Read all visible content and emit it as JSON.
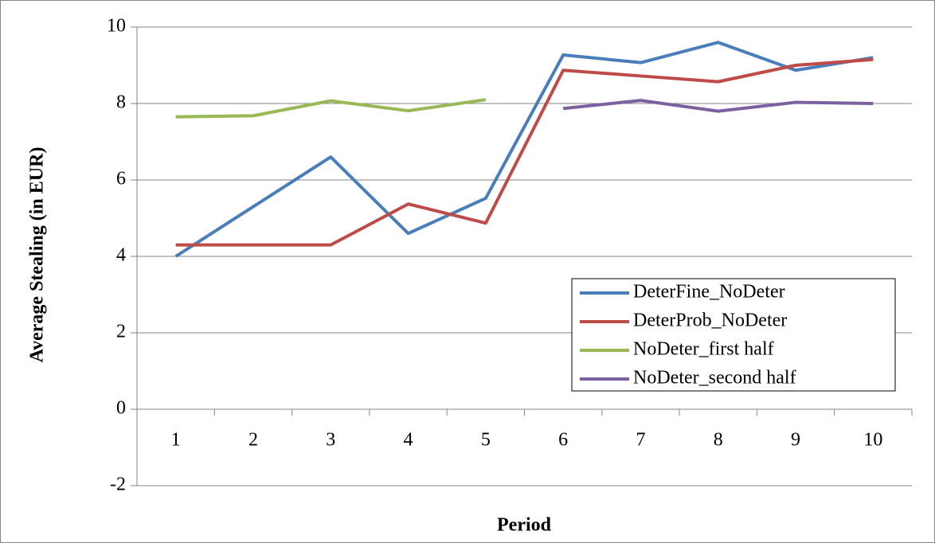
{
  "chart_data": {
    "type": "line",
    "x_label": "Period",
    "y_label": "Average Stealing (in EUR)",
    "categories": [
      "1",
      "2",
      "3",
      "4",
      "5",
      "6",
      "7",
      "8",
      "9",
      "10"
    ],
    "series": [
      {
        "name": "DeterFine_NoDeter",
        "color": "#4a7ebb",
        "values": [
          4.0,
          5.3,
          6.6,
          4.6,
          5.52,
          9.27,
          9.07,
          9.6,
          8.87,
          9.2
        ]
      },
      {
        "name": "DeterProb_NoDeter",
        "color": "#be4b48",
        "values": [
          4.3,
          4.3,
          4.3,
          5.37,
          4.87,
          8.87,
          8.72,
          8.57,
          9.0,
          9.15
        ]
      },
      {
        "name": "NoDeter_first half",
        "color": "#98b954",
        "values": [
          7.65,
          7.68,
          8.07,
          7.81,
          8.1,
          null,
          null,
          null,
          null,
          null
        ]
      },
      {
        "name": "NoDeter_second half",
        "color": "#7d60a0",
        "values": [
          null,
          null,
          null,
          null,
          null,
          7.87,
          8.08,
          7.8,
          8.03,
          8.0
        ]
      }
    ],
    "ylim": [
      -2,
      10
    ],
    "yticks": [
      -2,
      0,
      2,
      4,
      6,
      8,
      10
    ],
    "grid": true,
    "legend_position": "lower right"
  }
}
